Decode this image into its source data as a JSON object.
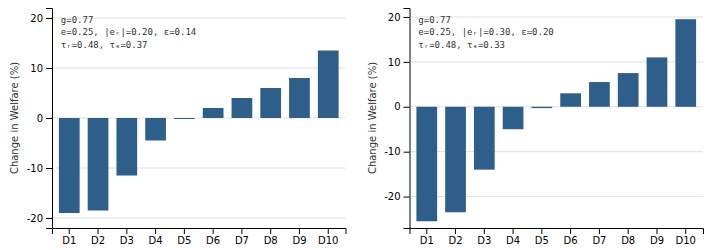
{
  "chart_data": [
    {
      "type": "bar",
      "categories": [
        "D1",
        "D2",
        "D3",
        "D4",
        "D5",
        "D6",
        "D7",
        "D8",
        "D9",
        "D10"
      ],
      "values": [
        -19.0,
        -18.5,
        -11.5,
        -4.5,
        -0.2,
        2.0,
        4.0,
        6.0,
        8.0,
        13.5
      ],
      "color": "#2e5f8a",
      "ylabel": "Change in Welfare (%)",
      "annotations": [
        "g=0.77",
        "e=0.25, |eᵣ|=0.20, ε=0.14",
        "τᵣ=0.48, τₑ=0.37"
      ],
      "ylim": [
        -22,
        22
      ],
      "yticks": [
        -20,
        -10,
        0,
        10,
        20
      ],
      "grid": true
    },
    {
      "type": "bar",
      "categories": [
        "D1",
        "D2",
        "D3",
        "D4",
        "D5",
        "D6",
        "D7",
        "D8",
        "D9",
        "D10"
      ],
      "values": [
        -25.5,
        -23.5,
        -14.0,
        -5.0,
        -0.3,
        3.0,
        5.5,
        7.5,
        11.0,
        19.5
      ],
      "color": "#2e5f8a",
      "ylabel": "Change in Welfare (%)",
      "annotations": [
        "g=0.77",
        "e=0.25, |eᵣ|=0.30, ε=0.20",
        "τᵣ=0.48, τₑ=0.33"
      ],
      "ylim": [
        -27,
        22
      ],
      "yticks": [
        -20,
        -10,
        0,
        10,
        20
      ],
      "grid": true
    }
  ]
}
